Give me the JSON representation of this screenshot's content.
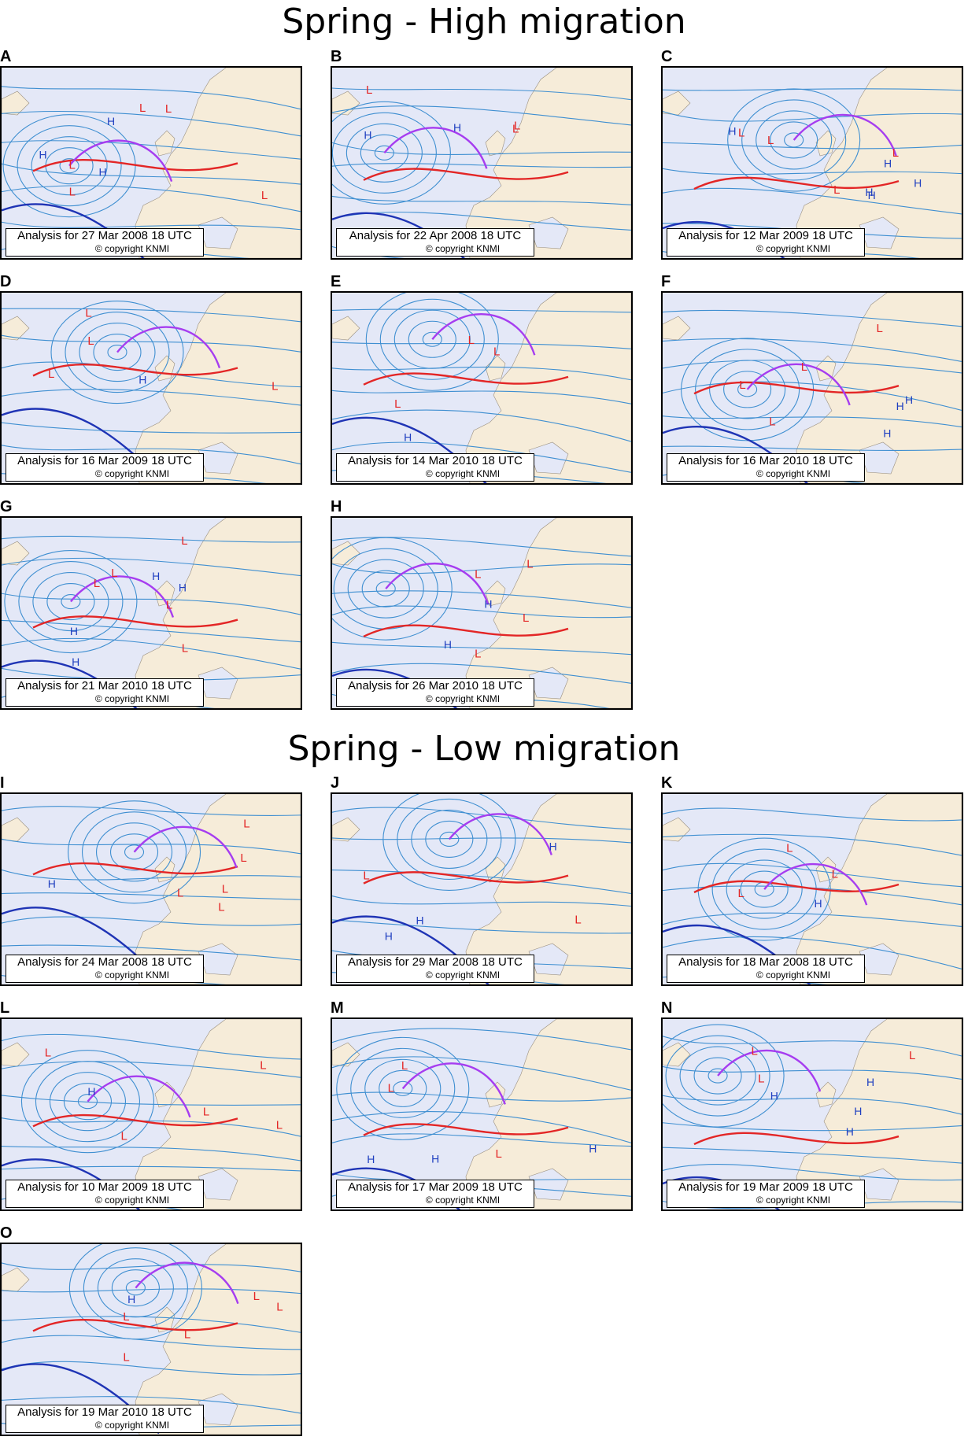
{
  "sections": [
    {
      "title": "Spring - High  migration"
    },
    {
      "title": "Spring - Low migration"
    }
  ],
  "colors": {
    "ocean": "#e4e8f7",
    "land": "#f6ecd9",
    "isobar": "#3f8fd1",
    "warm_front": "#e32626",
    "cold_front": "#1f34b5",
    "occluded_front": "#a63df0",
    "high_label": "#1f3fc0",
    "low_label": "#e32626"
  },
  "panels": [
    {
      "letter": "A",
      "caption": "Analysis for 27 Mar 2008 18 UTC",
      "copyright": "© copyright KNMI",
      "highs": 3,
      "lows": 5
    },
    {
      "letter": "B",
      "caption": "Analysis for 22 Apr 2008 18 UTC",
      "copyright": "© copyright KNMI",
      "highs": 2,
      "lows": 3
    },
    {
      "letter": "C",
      "caption": "Analysis for 12 Mar 2009 18 UTC",
      "copyright": "© copyright KNMI",
      "highs": 5,
      "lows": 4
    },
    {
      "letter": "D",
      "caption": "Analysis for 16 Mar 2009 18 UTC",
      "copyright": "© copyright KNMI",
      "highs": 1,
      "lows": 4
    },
    {
      "letter": "E",
      "caption": "Analysis for 14 Mar 2010 18 UTC",
      "copyright": "© copyright KNMI",
      "highs": 1,
      "lows": 3
    },
    {
      "letter": "F",
      "caption": "Analysis for 16 Mar 2010 18 UTC",
      "copyright": "© copyright KNMI",
      "highs": 3,
      "lows": 4
    },
    {
      "letter": "G",
      "caption": "Analysis for 21 Mar 2010 18 UTC",
      "copyright": "© copyright KNMI",
      "highs": 4,
      "lows": 5
    },
    {
      "letter": "H",
      "caption": "Analysis for 26 Mar 2010 18 UTC",
      "copyright": "© copyright KNMI",
      "highs": 2,
      "lows": 4
    },
    {
      "letter": "I",
      "caption": "Analysis for 24 Mar 2008 18 UTC",
      "copyright": "© copyright KNMI",
      "highs": 1,
      "lows": 5
    },
    {
      "letter": "J",
      "caption": "Analysis for 29 Mar 2008 18 UTC",
      "copyright": "© copyright KNMI",
      "highs": 3,
      "lows": 2
    },
    {
      "letter": "K",
      "caption": "Analysis for 18 Mar 2008 18 UTC",
      "copyright": "© copyright KNMI",
      "highs": 1,
      "lows": 3
    },
    {
      "letter": "L",
      "caption": "Analysis for 10 Mar 2009 18 UTC",
      "copyright": "© copyright KNMI",
      "highs": 1,
      "lows": 5
    },
    {
      "letter": "M",
      "caption": "Analysis for 17 Mar 2009 18 UTC",
      "copyright": "© copyright KNMI",
      "highs": 3,
      "lows": 3
    },
    {
      "letter": "N",
      "caption": "Analysis for 19 Mar 2009 18 UTC",
      "copyright": "© copyright KNMI",
      "highs": 4,
      "lows": 3
    },
    {
      "letter": "O",
      "caption": "Analysis for 19 Mar 2010 18 UTC",
      "copyright": "© copyright KNMI",
      "highs": 1,
      "lows": 5
    }
  ]
}
